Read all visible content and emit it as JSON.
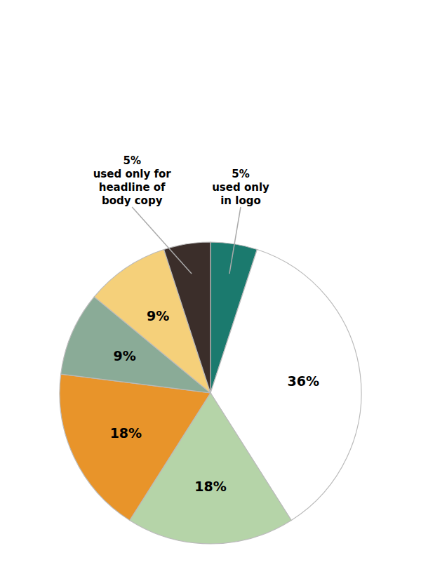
{
  "chart_data": {
    "type": "pie",
    "values": [
      5,
      36,
      18,
      18,
      9,
      9,
      5
    ],
    "colors": [
      "#1b7a6e",
      "#ffffff",
      "#b5d4a8",
      "#e8942a",
      "#8aab97",
      "#f5d07a",
      "#3b2e2a"
    ],
    "data_labels": true,
    "value_labels": [
      null,
      "36%",
      "18%",
      "18%",
      "9%",
      "9%",
      null
    ],
    "annotations": [
      "5%\nused only\nin logo",
      "5%\nused only for\nheadline of\nbody copy"
    ]
  }
}
